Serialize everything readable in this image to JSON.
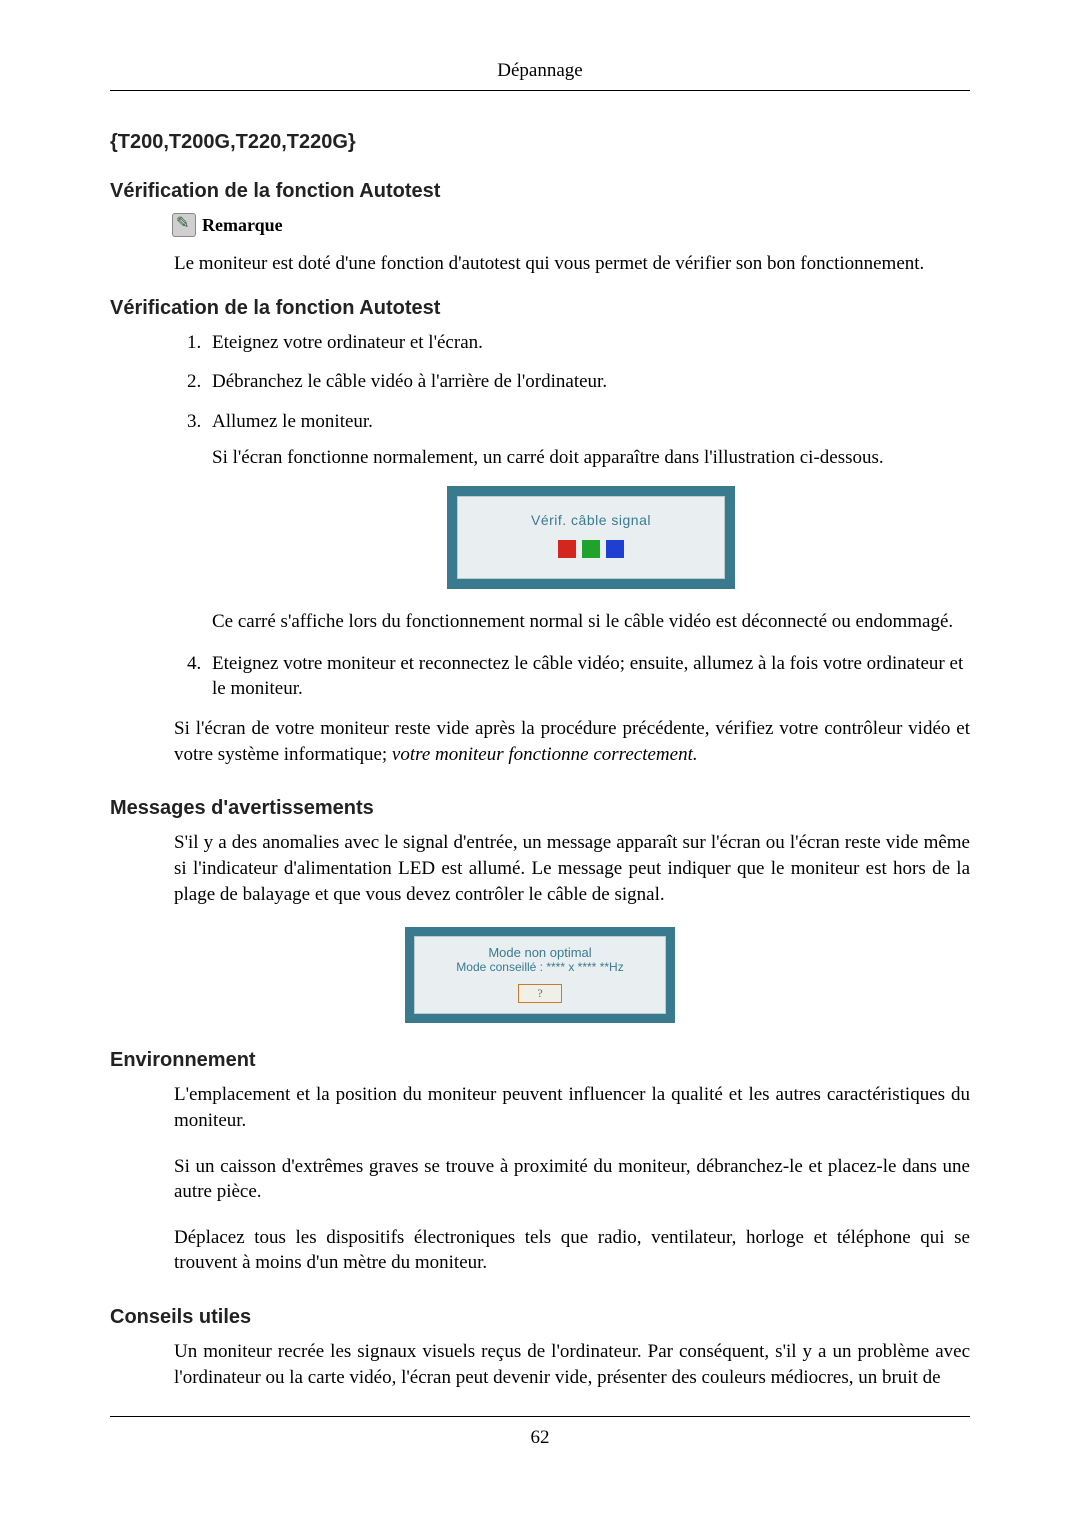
{
  "header": {
    "title": "Dépannage"
  },
  "footer": {
    "page_number": "62"
  },
  "models_heading": "{T200,T200G,T220,T220G}",
  "autotest1": {
    "heading": "Vérification de la fonction Autotest",
    "note_label": "Remarque",
    "note_text": "Le moniteur est doté d'une fonction d'autotest qui vous permet de vérifier son bon fonctionnement."
  },
  "autotest2": {
    "heading": "Vérification de la fonction Autotest",
    "steps": {
      "s1": "Eteignez votre ordinateur et l'écran.",
      "s2": "Débranchez le câble vidéo à l'arrière de l'ordinateur.",
      "s3": "Allumez le moniteur.",
      "s3_sub": "Si l'écran fonctionne normalement, un carré doit apparaître dans l'illustration ci-dessous.",
      "s3_after": "Ce carré s'affiche lors du fonctionnement normal si le câble vidéo est déconnecté ou endommagé.",
      "s4": "Eteignez votre moniteur et reconnectez le câble vidéo; ensuite, allumez à la fois votre ordinateur et le moniteur."
    },
    "closing_plain": "Si l'écran de votre moniteur reste vide après la procédure précédente, vérifiez votre contrôleur vidéo et votre système informatique; ",
    "closing_italic": "votre moniteur fonctionne correctement."
  },
  "illus1": {
    "text": "Vérif. câble signal",
    "border_color": "#3a7a8f",
    "bg_color": "#e9eef0",
    "text_color": "#3a7a8f",
    "sq_red": "#d3261f",
    "sq_green": "#1fa32b",
    "sq_blue": "#1f3fd3"
  },
  "warnings": {
    "heading": "Messages d'avertissements",
    "text": "S'il y a des anomalies avec le signal d'entrée, un message apparaît sur l'écran ou l'écran reste vide même si l'indicateur d'alimentation LED est allumé. Le message peut indiquer que le moniteur est hors de la plage de balayage et que vous devez contrôler le câble de signal."
  },
  "illus2": {
    "line1": "Mode non optimal",
    "line2": "Mode conseillé :  **** x ****  **Hz",
    "button": "?",
    "border_color": "#3a7a8f",
    "bg_color": "#e9eef0",
    "text_color": "#3a7a8f",
    "btn_border": "#c97b2e"
  },
  "environment": {
    "heading": "Environnement",
    "p1": "L'emplacement et la position du moniteur peuvent influencer la qualité et les autres caractéristiques du moniteur.",
    "p2": "Si un caisson d'extrêmes graves se trouve à proximité du moniteur, débranchez-le et placez-le dans une autre pièce.",
    "p3": "Déplacez tous les dispositifs électroniques tels que radio, ventilateur, horloge et téléphone qui se trouvent à moins d'un mètre du moniteur."
  },
  "tips": {
    "heading": "Conseils utiles",
    "p1": "Un moniteur recrée les signaux visuels reçus de l'ordinateur. Par conséquent, s'il y a un problème avec l'ordinateur ou la carte vidéo, l'écran peut devenir vide, présenter des couleurs médiocres, un bruit de"
  }
}
